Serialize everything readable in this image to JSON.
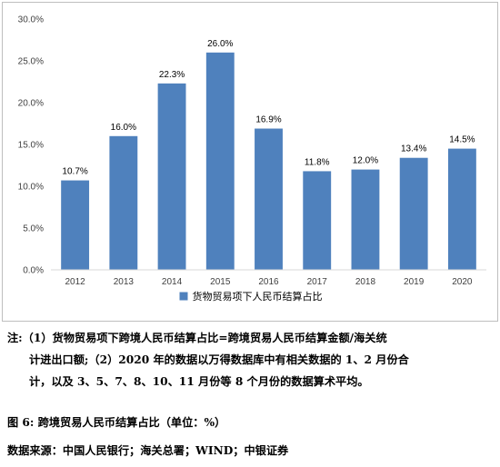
{
  "chart_data": {
    "type": "bar",
    "categories": [
      "2012",
      "2013",
      "2014",
      "2015",
      "2016",
      "2017",
      "2018",
      "2019",
      "2020"
    ],
    "series": [
      {
        "name": "货物贸易项下人民币结算占比",
        "values": [
          10.7,
          16.0,
          22.3,
          26.0,
          16.9,
          11.8,
          12.0,
          13.4,
          14.5
        ],
        "value_labels": [
          "10.7%",
          "16.0%",
          "22.3%",
          "26.0%",
          "16.9%",
          "11.8%",
          "12.0%",
          "13.4%",
          "14.5%"
        ],
        "color": "#4f81bd"
      }
    ],
    "ylim": [
      0,
      30
    ],
    "yticks": [
      0,
      5,
      10,
      15,
      20,
      25,
      30
    ],
    "ytick_labels": [
      "0.0%",
      "5.0%",
      "10.0%",
      "15.0%",
      "20.0%",
      "25.0%",
      "30.0%"
    ],
    "grid": false,
    "legend_position": "bottom",
    "title": "",
    "xlabel": "",
    "ylabel": ""
  },
  "note": {
    "line1": "注:（1）货物贸易项下跨境人民币结算占比=跨境贸易人民币结算金额/海关统",
    "line2": "计进出口额;（2）2020 年的数据以万得数据库中有相关数据的 1、2 月份合",
    "line3": "计，以及 3、5、7、8、10、11 月份等 8 个月份的数据算术平均。"
  },
  "figure_caption": "图 6: 跨境贸易人民币结算占比（单位：%）",
  "source": "数据来源：中国人民银行；海关总署；WIND；中银证券"
}
